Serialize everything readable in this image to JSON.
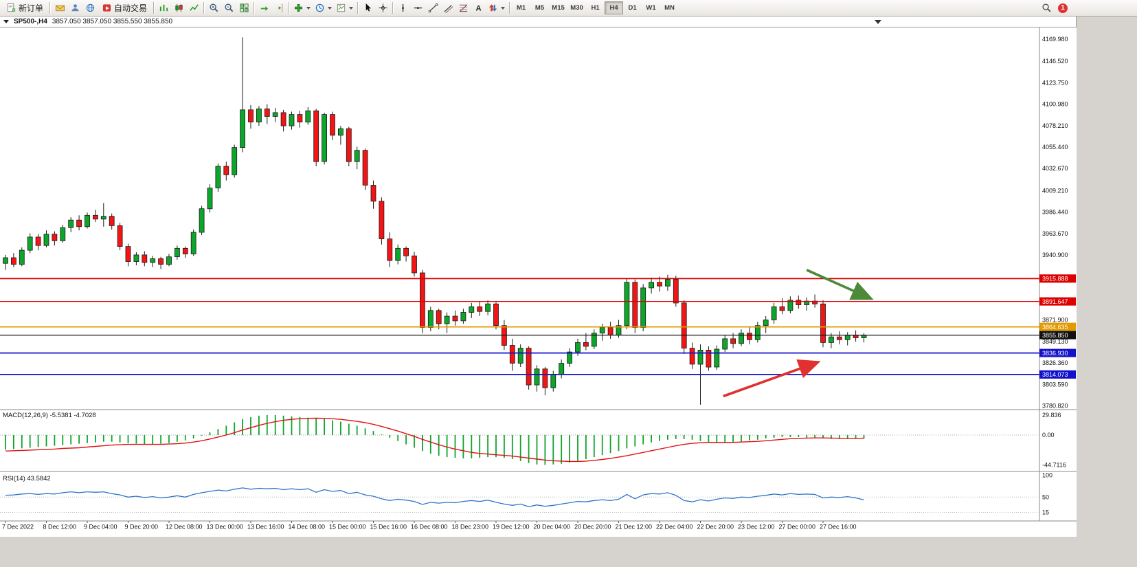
{
  "toolbar": {
    "notification_count": "1",
    "groups": [
      [
        {
          "name": "new-order-button",
          "icon": "new-order-icon",
          "label": "新订单"
        }
      ],
      [
        {
          "name": "mailbox-button",
          "icon": "mailbox-icon"
        },
        {
          "name": "user-button",
          "icon": "user-icon"
        },
        {
          "name": "globe-button",
          "icon": "globe-icon"
        },
        {
          "name": "autotrading-button",
          "icon": "autotrading-icon",
          "label": "自动交易"
        }
      ],
      [
        {
          "name": "bar-chart-button",
          "icon": "bar-chart-icon"
        },
        {
          "name": "candlestick-chart-button",
          "icon": "candlestick-chart-icon"
        },
        {
          "name": "line-chart-button",
          "icon": "line-chart-icon"
        }
      ],
      [
        {
          "name": "zoom-in-button",
          "icon": "zoom-in-icon"
        },
        {
          "name": "zoom-out-button",
          "icon": "zoom-out-icon"
        },
        {
          "name": "tile-windows-button",
          "icon": "tile-windows-icon"
        }
      ],
      [
        {
          "name": "auto-scroll-button",
          "icon": "auto-scroll-icon"
        },
        {
          "name": "chart-shift-button",
          "icon": "chart-shift-icon"
        }
      ],
      [
        {
          "name": "indicators-button",
          "icon": "indicators-icon",
          "dropdown": true
        },
        {
          "name": "periods-button",
          "icon": "periods-icon",
          "dropdown": true
        },
        {
          "name": "templates-button",
          "icon": "templates-icon",
          "dropdown": true
        }
      ],
      [
        {
          "name": "cursor-button",
          "icon": "cursor-icon"
        },
        {
          "name": "crosshair-button",
          "icon": "crosshair-icon"
        }
      ],
      [
        {
          "name": "vertical-line-button",
          "icon": "vertical-line-icon"
        },
        {
          "name": "horizontal-line-button",
          "icon": "horizontal-line-icon"
        },
        {
          "name": "trendline-button",
          "icon": "trendline-icon"
        },
        {
          "name": "channel-button",
          "icon": "channel-icon"
        },
        {
          "name": "fibonacci-button",
          "icon": "fibonacci-icon"
        },
        {
          "name": "text-button",
          "icon": "text-icon"
        },
        {
          "name": "arrows-button",
          "icon": "arrows-icon",
          "dropdown": true
        }
      ]
    ],
    "timeframes": {
      "items": [
        "M1",
        "M5",
        "M15",
        "M30",
        "H1",
        "H4",
        "D1",
        "W1",
        "MN"
      ],
      "active": "H4"
    }
  },
  "chart": {
    "symbol_period": "SP500-,H4",
    "ohlc_text": "3857.050 3857.050 3855.550 3855.850",
    "price_axis_labels": [
      "4169.980",
      "4146.520",
      "4123.750",
      "4100.980",
      "4078.210",
      "4055.440",
      "4032.670",
      "4009.210",
      "3986.440",
      "3963.670",
      "3940.900",
      "3871.900",
      "3849.130",
      "3826.360",
      "3803.590",
      "3780.820"
    ],
    "hlines": [
      {
        "price": 3915.888,
        "label": "3915.888",
        "color": "#dd0000",
        "width": 1.8
      },
      {
        "price": 3891.647,
        "label": "3891.647",
        "color": "#dd0000",
        "width": 1.2
      },
      {
        "price": 3864.635,
        "label": "3864.635",
        "color": "#e39a00",
        "width": 1.8
      },
      {
        "price": 3836.93,
        "label": "3836.930",
        "color": "#1212cc",
        "width": 1.8
      },
      {
        "price": 3814.073,
        "label": "3814.073",
        "color": "#1212cc",
        "width": 1.8
      }
    ],
    "current_price_line": {
      "price": 3855.85,
      "label": "3855.850",
      "color": "#111111"
    },
    "time_axis_labels": [
      "7 Dec 2022",
      "8 Dec 12:00",
      "9 Dec 04:00",
      "9 Dec 20:00",
      "12 Dec 08:00",
      "13 Dec 00:00",
      "13 Dec 16:00",
      "14 Dec 08:00",
      "15 Dec 00:00",
      "15 Dec 16:00",
      "16 Dec 08:00",
      "18 Dec 23:00",
      "19 Dec 12:00",
      "20 Dec 04:00",
      "20 Dec 20:00",
      "21 Dec 12:00",
      "22 Dec 04:00",
      "22 Dec 20:00",
      "23 Dec 12:00",
      "27 Dec 00:00",
      "27 Dec 16:00"
    ],
    "annotations": [
      {
        "name": "green-arrow",
        "color": "#4c8a3a",
        "from_bar": 98,
        "from_price": 3925,
        "to_bar": 105.5,
        "to_price": 3896
      },
      {
        "name": "red-arrow",
        "color": "#e03030",
        "from_bar": 87.8,
        "from_price": 3791,
        "to_bar": 99,
        "to_price": 3826
      }
    ]
  },
  "chart_data": {
    "type": "candlestick",
    "symbol": "SP500-",
    "timeframe": "H4",
    "ohlc_label_values": {
      "open": "3857.050",
      "high": "3857.050",
      "low": "3855.550",
      "close": "3855.850"
    },
    "price_range_visible": [
      3780.82,
      4169.98
    ],
    "candles_ohlc": [
      [
        3932,
        3941,
        3925,
        3938
      ],
      [
        3938,
        3943,
        3928,
        3931
      ],
      [
        3931,
        3949,
        3929,
        3946
      ],
      [
        3946,
        3964,
        3943,
        3960
      ],
      [
        3960,
        3963,
        3946,
        3951
      ],
      [
        3951,
        3967,
        3949,
        3963
      ],
      [
        3963,
        3966,
        3951,
        3956
      ],
      [
        3956,
        3973,
        3954,
        3970
      ],
      [
        3970,
        3981,
        3965,
        3978
      ],
      [
        3978,
        3983,
        3967,
        3971
      ],
      [
        3971,
        3986,
        3969,
        3983
      ],
      [
        3983,
        3989,
        3976,
        3979
      ],
      [
        3979,
        3996,
        3971,
        3982
      ],
      [
        3982,
        3985,
        3968,
        3972
      ],
      [
        3972,
        3975,
        3946,
        3950
      ],
      [
        3950,
        3953,
        3929,
        3934
      ],
      [
        3934,
        3944,
        3930,
        3941
      ],
      [
        3941,
        3945,
        3929,
        3933
      ],
      [
        3933,
        3940,
        3928,
        3937
      ],
      [
        3937,
        3939,
        3926,
        3931
      ],
      [
        3931,
        3942,
        3929,
        3939
      ],
      [
        3939,
        3951,
        3936,
        3948
      ],
      [
        3948,
        3950,
        3938,
        3942
      ],
      [
        3942,
        3968,
        3940,
        3965
      ],
      [
        3965,
        3993,
        3962,
        3990
      ],
      [
        3990,
        4016,
        3986,
        4012
      ],
      [
        4012,
        4038,
        4008,
        4035
      ],
      [
        4035,
        4040,
        4020,
        4026
      ],
      [
        4026,
        4058,
        4023,
        4055
      ],
      [
        4055,
        4172,
        4050,
        4095
      ],
      [
        4095,
        4100,
        4075,
        4082
      ],
      [
        4082,
        4099,
        4078,
        4096
      ],
      [
        4096,
        4101,
        4080,
        4088
      ],
      [
        4088,
        4097,
        4082,
        4092
      ],
      [
        4092,
        4095,
        4072,
        4078
      ],
      [
        4078,
        4093,
        4074,
        4090
      ],
      [
        4090,
        4094,
        4076,
        4082
      ],
      [
        4082,
        4098,
        4079,
        4094
      ],
      [
        4094,
        4096,
        4035,
        4040
      ],
      [
        4040,
        4092,
        4037,
        4090
      ],
      [
        4090,
        4093,
        4063,
        4068
      ],
      [
        4068,
        4078,
        4058,
        4075
      ],
      [
        4075,
        4077,
        4035,
        4040
      ],
      [
        4040,
        4056,
        4032,
        4052
      ],
      [
        4052,
        4054,
        4010,
        4015
      ],
      [
        4015,
        4020,
        3990,
        3998
      ],
      [
        3998,
        4002,
        3952,
        3958
      ],
      [
        3958,
        3965,
        3928,
        3935
      ],
      [
        3935,
        3952,
        3931,
        3948
      ],
      [
        3948,
        3950,
        3934,
        3940
      ],
      [
        3940,
        3944,
        3918,
        3922
      ],
      [
        3922,
        3925,
        3858,
        3864
      ],
      [
        3864,
        3886,
        3860,
        3882
      ],
      [
        3882,
        3884,
        3862,
        3868
      ],
      [
        3868,
        3880,
        3858,
        3876
      ],
      [
        3876,
        3882,
        3866,
        3871
      ],
      [
        3871,
        3884,
        3868,
        3880
      ],
      [
        3880,
        3890,
        3874,
        3886
      ],
      [
        3886,
        3892,
        3876,
        3881
      ],
      [
        3881,
        3893,
        3877,
        3889
      ],
      [
        3889,
        3891,
        3862,
        3866
      ],
      [
        3866,
        3872,
        3840,
        3845
      ],
      [
        3845,
        3852,
        3818,
        3826
      ],
      [
        3826,
        3846,
        3822,
        3842
      ],
      [
        3842,
        3844,
        3798,
        3803
      ],
      [
        3803,
        3824,
        3796,
        3820
      ],
      [
        3820,
        3822,
        3792,
        3800
      ],
      [
        3800,
        3818,
        3796,
        3814
      ],
      [
        3814,
        3830,
        3810,
        3826
      ],
      [
        3826,
        3842,
        3822,
        3838
      ],
      [
        3838,
        3852,
        3834,
        3848
      ],
      [
        3848,
        3858,
        3840,
        3844
      ],
      [
        3844,
        3862,
        3841,
        3858
      ],
      [
        3858,
        3868,
        3850,
        3864
      ],
      [
        3864,
        3870,
        3852,
        3856
      ],
      [
        3856,
        3872,
        3853,
        3866
      ],
      [
        3866,
        3916,
        3862,
        3912
      ],
      [
        3912,
        3915,
        3858,
        3864
      ],
      [
        3864,
        3910,
        3860,
        3906
      ],
      [
        3906,
        3917,
        3900,
        3912
      ],
      [
        3912,
        3918,
        3902,
        3908
      ],
      [
        3908,
        3920,
        3903,
        3915
      ],
      [
        3915,
        3919,
        3886,
        3890
      ],
      [
        3890,
        3893,
        3836,
        3842
      ],
      [
        3842,
        3848,
        3820,
        3825
      ],
      [
        3825,
        3846,
        3782,
        3840
      ],
      [
        3840,
        3844,
        3818,
        3822
      ],
      [
        3822,
        3845,
        3819,
        3841
      ],
      [
        3841,
        3856,
        3838,
        3852
      ],
      [
        3852,
        3858,
        3842,
        3847
      ],
      [
        3847,
        3862,
        3844,
        3858
      ],
      [
        3858,
        3864,
        3846,
        3851
      ],
      [
        3851,
        3870,
        3848,
        3866
      ],
      [
        3866,
        3876,
        3858,
        3872
      ],
      [
        3872,
        3890,
        3868,
        3886
      ],
      [
        3886,
        3895,
        3878,
        3882
      ],
      [
        3882,
        3897,
        3879,
        3893
      ],
      [
        3893,
        3898,
        3884,
        3888
      ],
      [
        3888,
        3896,
        3882,
        3892
      ],
      [
        3892,
        3899,
        3885,
        3889
      ],
      [
        3889,
        3893,
        3843,
        3848
      ],
      [
        3848,
        3858,
        3842,
        3854
      ],
      [
        3854,
        3860,
        3846,
        3851
      ],
      [
        3851,
        3859,
        3845,
        3856
      ],
      [
        3856,
        3861,
        3849,
        3853
      ],
      [
        3853,
        3858,
        3848,
        3855.85
      ]
    ],
    "indicators": {
      "macd": {
        "label": "MACD(12,26,9)",
        "values_text": "-5.5381 -4.7028",
        "axis_labels": [
          "29.836",
          "0.00",
          "-44.7116"
        ],
        "histogram": [
          -22,
          -21,
          -20,
          -19,
          -18,
          -17,
          -16,
          -15,
          -14,
          -13,
          -12,
          -11,
          -10,
          -10,
          -11,
          -12,
          -13,
          -14,
          -14,
          -13,
          -12,
          -10,
          -8,
          -5,
          -1,
          4,
          9,
          14,
          19,
          24,
          27,
          29,
          30,
          29.8,
          29,
          28,
          27,
          26,
          25,
          24,
          22,
          20,
          17,
          14,
          10,
          6,
          1,
          -4,
          -9,
          -14,
          -19,
          -24,
          -28,
          -31,
          -33,
          -34,
          -35,
          -35,
          -34,
          -33,
          -33,
          -34,
          -36,
          -39,
          -42,
          -44,
          -44.7,
          -44,
          -43,
          -41,
          -39,
          -36,
          -33,
          -30,
          -27,
          -24,
          -20,
          -17,
          -14,
          -11,
          -9,
          -7,
          -6,
          -6,
          -7,
          -9,
          -11,
          -12,
          -12,
          -11,
          -10,
          -8,
          -7,
          -5,
          -4,
          -3,
          -3,
          -3,
          -4,
          -4,
          -5,
          -6,
          -6,
          -6,
          -5.8,
          -5.5
        ],
        "signal": [
          -24,
          -23.5,
          -23,
          -22.5,
          -22,
          -21.5,
          -21,
          -20,
          -19.5,
          -19,
          -18,
          -17,
          -16,
          -15,
          -14.5,
          -14,
          -14,
          -14,
          -14,
          -14,
          -13.5,
          -13,
          -12,
          -10.5,
          -8.5,
          -6,
          -3,
          0,
          3.5,
          7.5,
          11,
          14.5,
          17.5,
          20,
          22,
          23.5,
          24.5,
          25,
          25.2,
          25,
          24.5,
          23.5,
          22,
          20.5,
          18.5,
          16,
          13,
          9.5,
          6,
          2,
          -2,
          -6.5,
          -10.5,
          -14.5,
          -18,
          -21,
          -23.5,
          -26,
          -27.5,
          -28.5,
          -29.5,
          -30.5,
          -31.5,
          -33,
          -34.5,
          -36,
          -37.5,
          -38.5,
          -39,
          -39.5,
          -39.5,
          -39,
          -38,
          -36.5,
          -35,
          -33,
          -31,
          -28.5,
          -26,
          -23.5,
          -21,
          -18.5,
          -16,
          -14,
          -12.5,
          -11.5,
          -11,
          -11,
          -11,
          -11,
          -10.5,
          -10,
          -9.5,
          -8.5,
          -7.5,
          -6.5,
          -5.5,
          -5,
          -4.5,
          -4.3,
          -4.3,
          -4.5,
          -4.8,
          -5,
          -4.9,
          -4.7
        ]
      },
      "rsi": {
        "label": "RSI(14)",
        "value_text": "43.5842",
        "axis_labels": [
          "100",
          "50",
          "15"
        ],
        "levels": [
          50,
          15
        ],
        "values": [
          54,
          55,
          57,
          58,
          56,
          58,
          57,
          60,
          62,
          60,
          62,
          61,
          62,
          58,
          55,
          50,
          52,
          49,
          51,
          48,
          50,
          53,
          50,
          56,
          60,
          63,
          66,
          64,
          68,
          71,
          68,
          70,
          69,
          70,
          67,
          69,
          67,
          69,
          61,
          67,
          63,
          65,
          58,
          61,
          55,
          52,
          46,
          42,
          45,
          43,
          40,
          33,
          38,
          36,
          38,
          37,
          40,
          42,
          40,
          43,
          38,
          34,
          31,
          34,
          28,
          32,
          29,
          31,
          34,
          37,
          40,
          39,
          42,
          44,
          42,
          45,
          56,
          46,
          55,
          58,
          57,
          60,
          54,
          42,
          39,
          44,
          41,
          45,
          48,
          47,
          50,
          49,
          52,
          54,
          57,
          55,
          58,
          56,
          57,
          56,
          48,
          50,
          49,
          51,
          48,
          43.58
        ]
      }
    }
  }
}
